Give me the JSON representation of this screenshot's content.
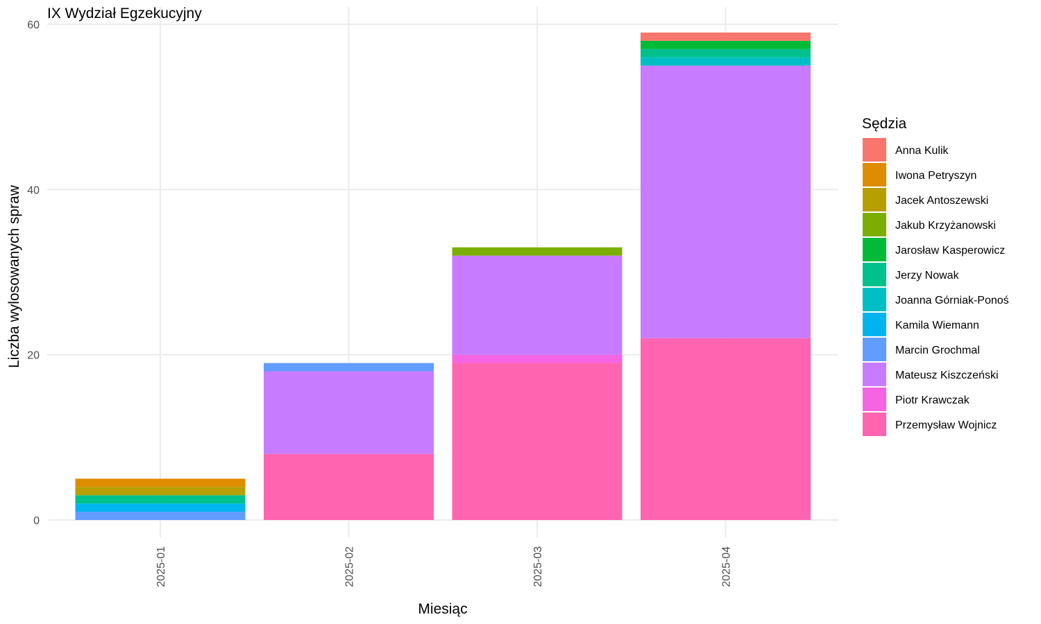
{
  "chart_data": {
    "type": "bar",
    "stacked": true,
    "title": "IX Wydział Egzekucyjny",
    "xlabel": "Miesiąc",
    "ylabel": "Liczba wylosowanych spraw",
    "categories": [
      "2025-01",
      "2025-02",
      "2025-03",
      "2025-04"
    ],
    "ylim": [
      0,
      60
    ],
    "yticks": [
      0,
      20,
      40,
      60
    ],
    "grid": true,
    "legend": {
      "title": "Sędzia",
      "position": "right"
    },
    "series": [
      {
        "name": "Anna Kulik",
        "color": "#F8766D",
        "values": [
          0,
          0,
          0,
          1
        ]
      },
      {
        "name": "Iwona Petryszyn",
        "color": "#DE8C00",
        "values": [
          1,
          0,
          0,
          0
        ]
      },
      {
        "name": "Jacek Antoszewski",
        "color": "#B79F00",
        "values": [
          1,
          0,
          0,
          0
        ]
      },
      {
        "name": "Jakub Krzyżanowski",
        "color": "#7CAE00",
        "values": [
          0,
          0,
          1,
          0
        ]
      },
      {
        "name": "Jarosław Kasperowicz",
        "color": "#00BA38",
        "values": [
          0,
          0,
          0,
          1
        ]
      },
      {
        "name": "Jerzy Nowak",
        "color": "#00C08B",
        "values": [
          1,
          0,
          0,
          1
        ]
      },
      {
        "name": "Joanna Górniak-Ponoś",
        "color": "#00BFC4",
        "values": [
          0,
          0,
          0,
          1
        ]
      },
      {
        "name": "Kamila Wiemann",
        "color": "#00B4F0",
        "values": [
          1,
          0,
          0,
          0
        ]
      },
      {
        "name": "Marcin Grochmal",
        "color": "#619CFF",
        "values": [
          1,
          1,
          0,
          0
        ]
      },
      {
        "name": "Mateusz Kiszczeński",
        "color": "#C77CFF",
        "values": [
          0,
          10,
          12,
          33
        ]
      },
      {
        "name": "Piotr Krawczak",
        "color": "#F564E3",
        "values": [
          0,
          0,
          1,
          0
        ]
      },
      {
        "name": "Przemysław Wojnicz",
        "color": "#FF64B0",
        "values": [
          0,
          8,
          19,
          22
        ]
      }
    ]
  }
}
